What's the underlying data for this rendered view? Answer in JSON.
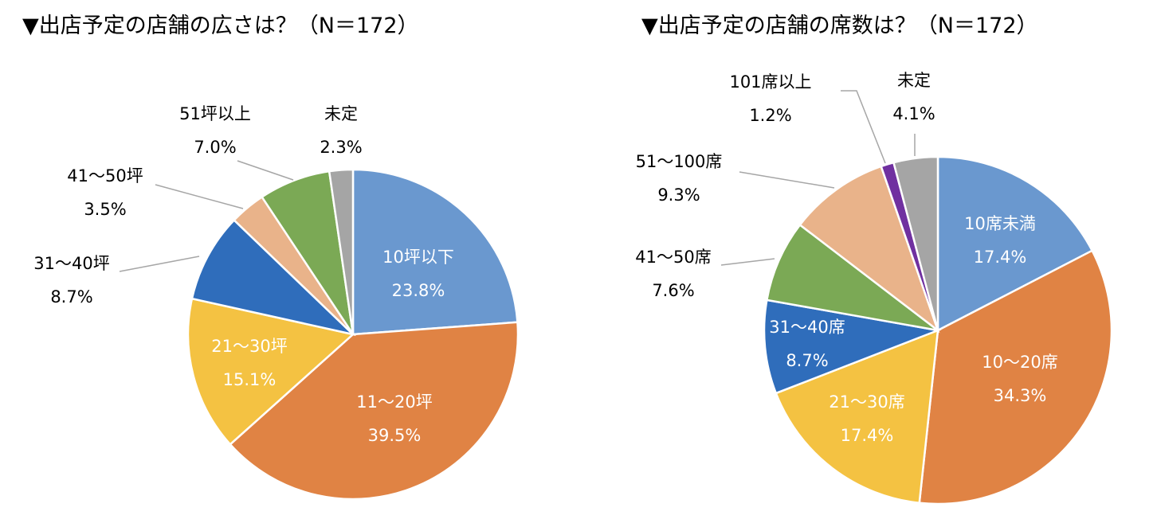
{
  "chart_data": [
    {
      "type": "pie",
      "title": "▼出店予定の店舗の広さは？（N＝172）",
      "categories": [
        "10坪以下",
        "11～20坪",
        "21～30坪",
        "31～40坪",
        "41～50坪",
        "51坪以上",
        "未定"
      ],
      "values": [
        23.8,
        39.5,
        15.1,
        8.7,
        3.5,
        7.0,
        2.3
      ],
      "labels": [
        "23.8%",
        "39.5%",
        "15.1%",
        "8.7%",
        "3.5%",
        "7.0%",
        "2.3%"
      ],
      "colors": [
        "#6A98CF",
        "#E08344",
        "#F4C242",
        "#2F6DBB",
        "#E9B38A",
        "#7BA955",
        "#A5A5A5"
      ],
      "unit": "%"
    },
    {
      "type": "pie",
      "title": "▼出店予定の店舗の席数は？（N＝172）",
      "categories": [
        "10席未満",
        "10～20席",
        "21～30席",
        "31～40席",
        "41～50席",
        "51～100席",
        "101席以上",
        "未定"
      ],
      "values": [
        17.4,
        34.3,
        17.4,
        8.7,
        7.6,
        9.3,
        1.2,
        4.1
      ],
      "labels": [
        "17.4%",
        "34.3%",
        "17.4%",
        "8.7%",
        "7.6%",
        "9.3%",
        "1.2%",
        "4.1%"
      ],
      "colors": [
        "#6A98CF",
        "#E08344",
        "#F4C242",
        "#2F6DBB",
        "#7BA955",
        "#E9B38A",
        "#7030A0",
        "#A5A5A5"
      ],
      "unit": "%"
    }
  ]
}
